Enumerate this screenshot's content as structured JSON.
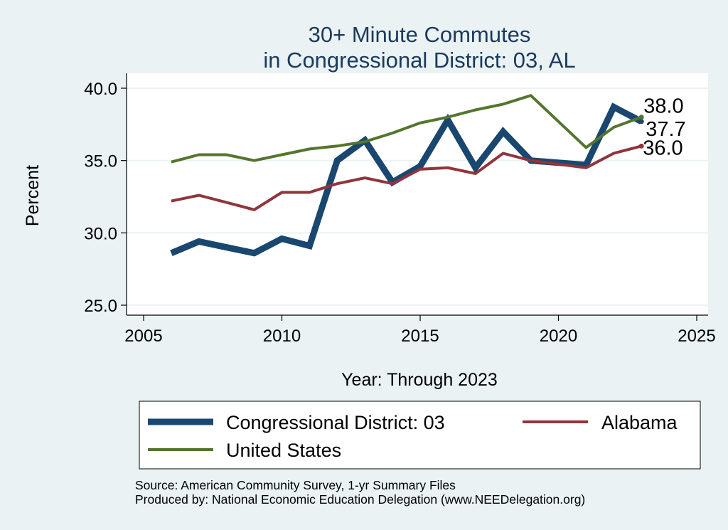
{
  "chart_data": {
    "type": "line",
    "title_lines": [
      "30+ Minute Commutes",
      "in Congressional District:  03, AL"
    ],
    "xlabel": "Year: Through 2023",
    "ylabel": "Percent",
    "xlim": [
      2005,
      2025
    ],
    "ylim": [
      25,
      40
    ],
    "x_ticks": [
      2005,
      2010,
      2015,
      2020,
      2025
    ],
    "y_ticks": [
      25,
      30,
      35,
      40
    ],
    "y_tick_labels": [
      "25.0",
      "30.0",
      "35.0",
      "40.0"
    ],
    "grid": true,
    "legend_position": "bottom",
    "x": [
      2006,
      2007,
      2008,
      2009,
      2010,
      2011,
      2012,
      2013,
      2014,
      2015,
      2016,
      2017,
      2018,
      2019,
      2021,
      2022,
      2023
    ],
    "series": [
      {
        "name": "Congressional District:  03",
        "color": "#1a476f",
        "width": 9,
        "values": [
          28.6,
          29.4,
          29.0,
          28.6,
          29.6,
          29.1,
          35.0,
          36.4,
          33.5,
          34.6,
          37.8,
          34.5,
          37.0,
          35.0,
          34.7,
          38.7,
          37.7
        ],
        "end_label": "37.7"
      },
      {
        "name": "Alabama",
        "color": "#90353b",
        "width": 4,
        "values": [
          32.2,
          32.6,
          32.1,
          31.6,
          32.8,
          32.8,
          33.4,
          33.8,
          33.4,
          34.4,
          34.5,
          34.1,
          35.5,
          35.0,
          34.5,
          35.5,
          36.0
        ],
        "end_label": "36.0"
      },
      {
        "name": "United States",
        "color": "#55752f",
        "width": 4,
        "values": [
          34.9,
          35.4,
          35.4,
          35.0,
          35.4,
          35.8,
          36.0,
          36.3,
          36.9,
          37.6,
          38.0,
          38.5,
          38.9,
          39.5,
          35.9,
          37.3,
          38.0
        ],
        "end_label": "38.0"
      }
    ],
    "notes": [
      "Source: American Community Survey, 1-yr Summary Files",
      "Produced by: National Economic Education Delegation (www.NEEDelegation.org)"
    ]
  }
}
